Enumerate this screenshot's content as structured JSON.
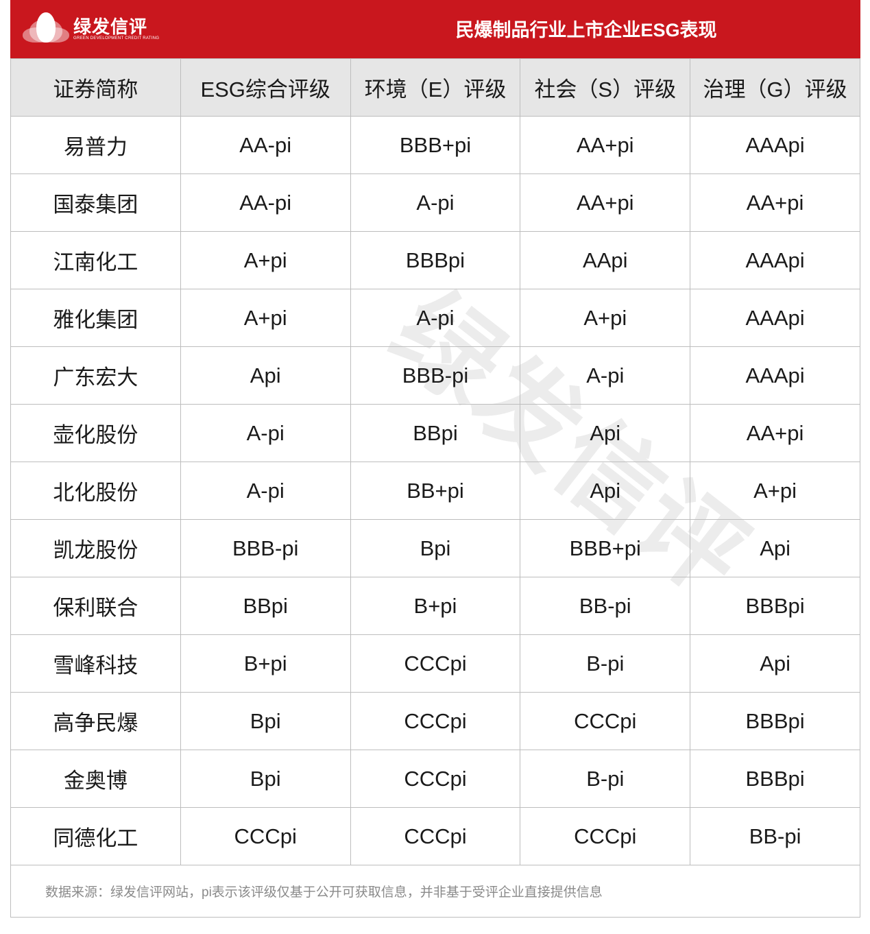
{
  "header": {
    "logo_cn": "绿发信评",
    "logo_en": "GREEN DEVELOPMENT CREDIT RATING",
    "title": "民爆制品行业上市企业ESG表现",
    "accent_color": "#c9171e"
  },
  "table": {
    "columns": [
      "证券简称",
      "ESG综合评级",
      "环境（E）评级",
      "社会（S）评级",
      "治理（G）评级"
    ],
    "rows": [
      [
        "易普力",
        "AA-pi",
        "BBB+pi",
        "AA+pi",
        "AAApi"
      ],
      [
        "国泰集团",
        "AA-pi",
        "A-pi",
        "AA+pi",
        "AA+pi"
      ],
      [
        "江南化工",
        "A+pi",
        "BBBpi",
        "AApi",
        "AAApi"
      ],
      [
        "雅化集团",
        "A+pi",
        "A-pi",
        "A+pi",
        "AAApi"
      ],
      [
        "广东宏大",
        "Api",
        "BBB-pi",
        "A-pi",
        "AAApi"
      ],
      [
        "壶化股份",
        "A-pi",
        "BBpi",
        "Api",
        "AA+pi"
      ],
      [
        "北化股份",
        "A-pi",
        "BB+pi",
        "Api",
        "A+pi"
      ],
      [
        "凯龙股份",
        "BBB-pi",
        "Bpi",
        "BBB+pi",
        "Api"
      ],
      [
        "保利联合",
        "BBpi",
        "B+pi",
        "BB-pi",
        "BBBpi"
      ],
      [
        "雪峰科技",
        "B+pi",
        "CCCpi",
        "B-pi",
        "Api"
      ],
      [
        "高争民爆",
        "Bpi",
        "CCCpi",
        "CCCpi",
        "BBBpi"
      ],
      [
        "金奥博",
        "Bpi",
        "CCCpi",
        "B-pi",
        "BBBpi"
      ],
      [
        "同德化工",
        "CCCpi",
        "CCCpi",
        "CCCpi",
        "BB-pi"
      ]
    ]
  },
  "footer": {
    "note": "数据来源：绿发信评网站，pi表示该评级仅基于公开可获取信息，并非基于受评企业直接提供信息"
  }
}
